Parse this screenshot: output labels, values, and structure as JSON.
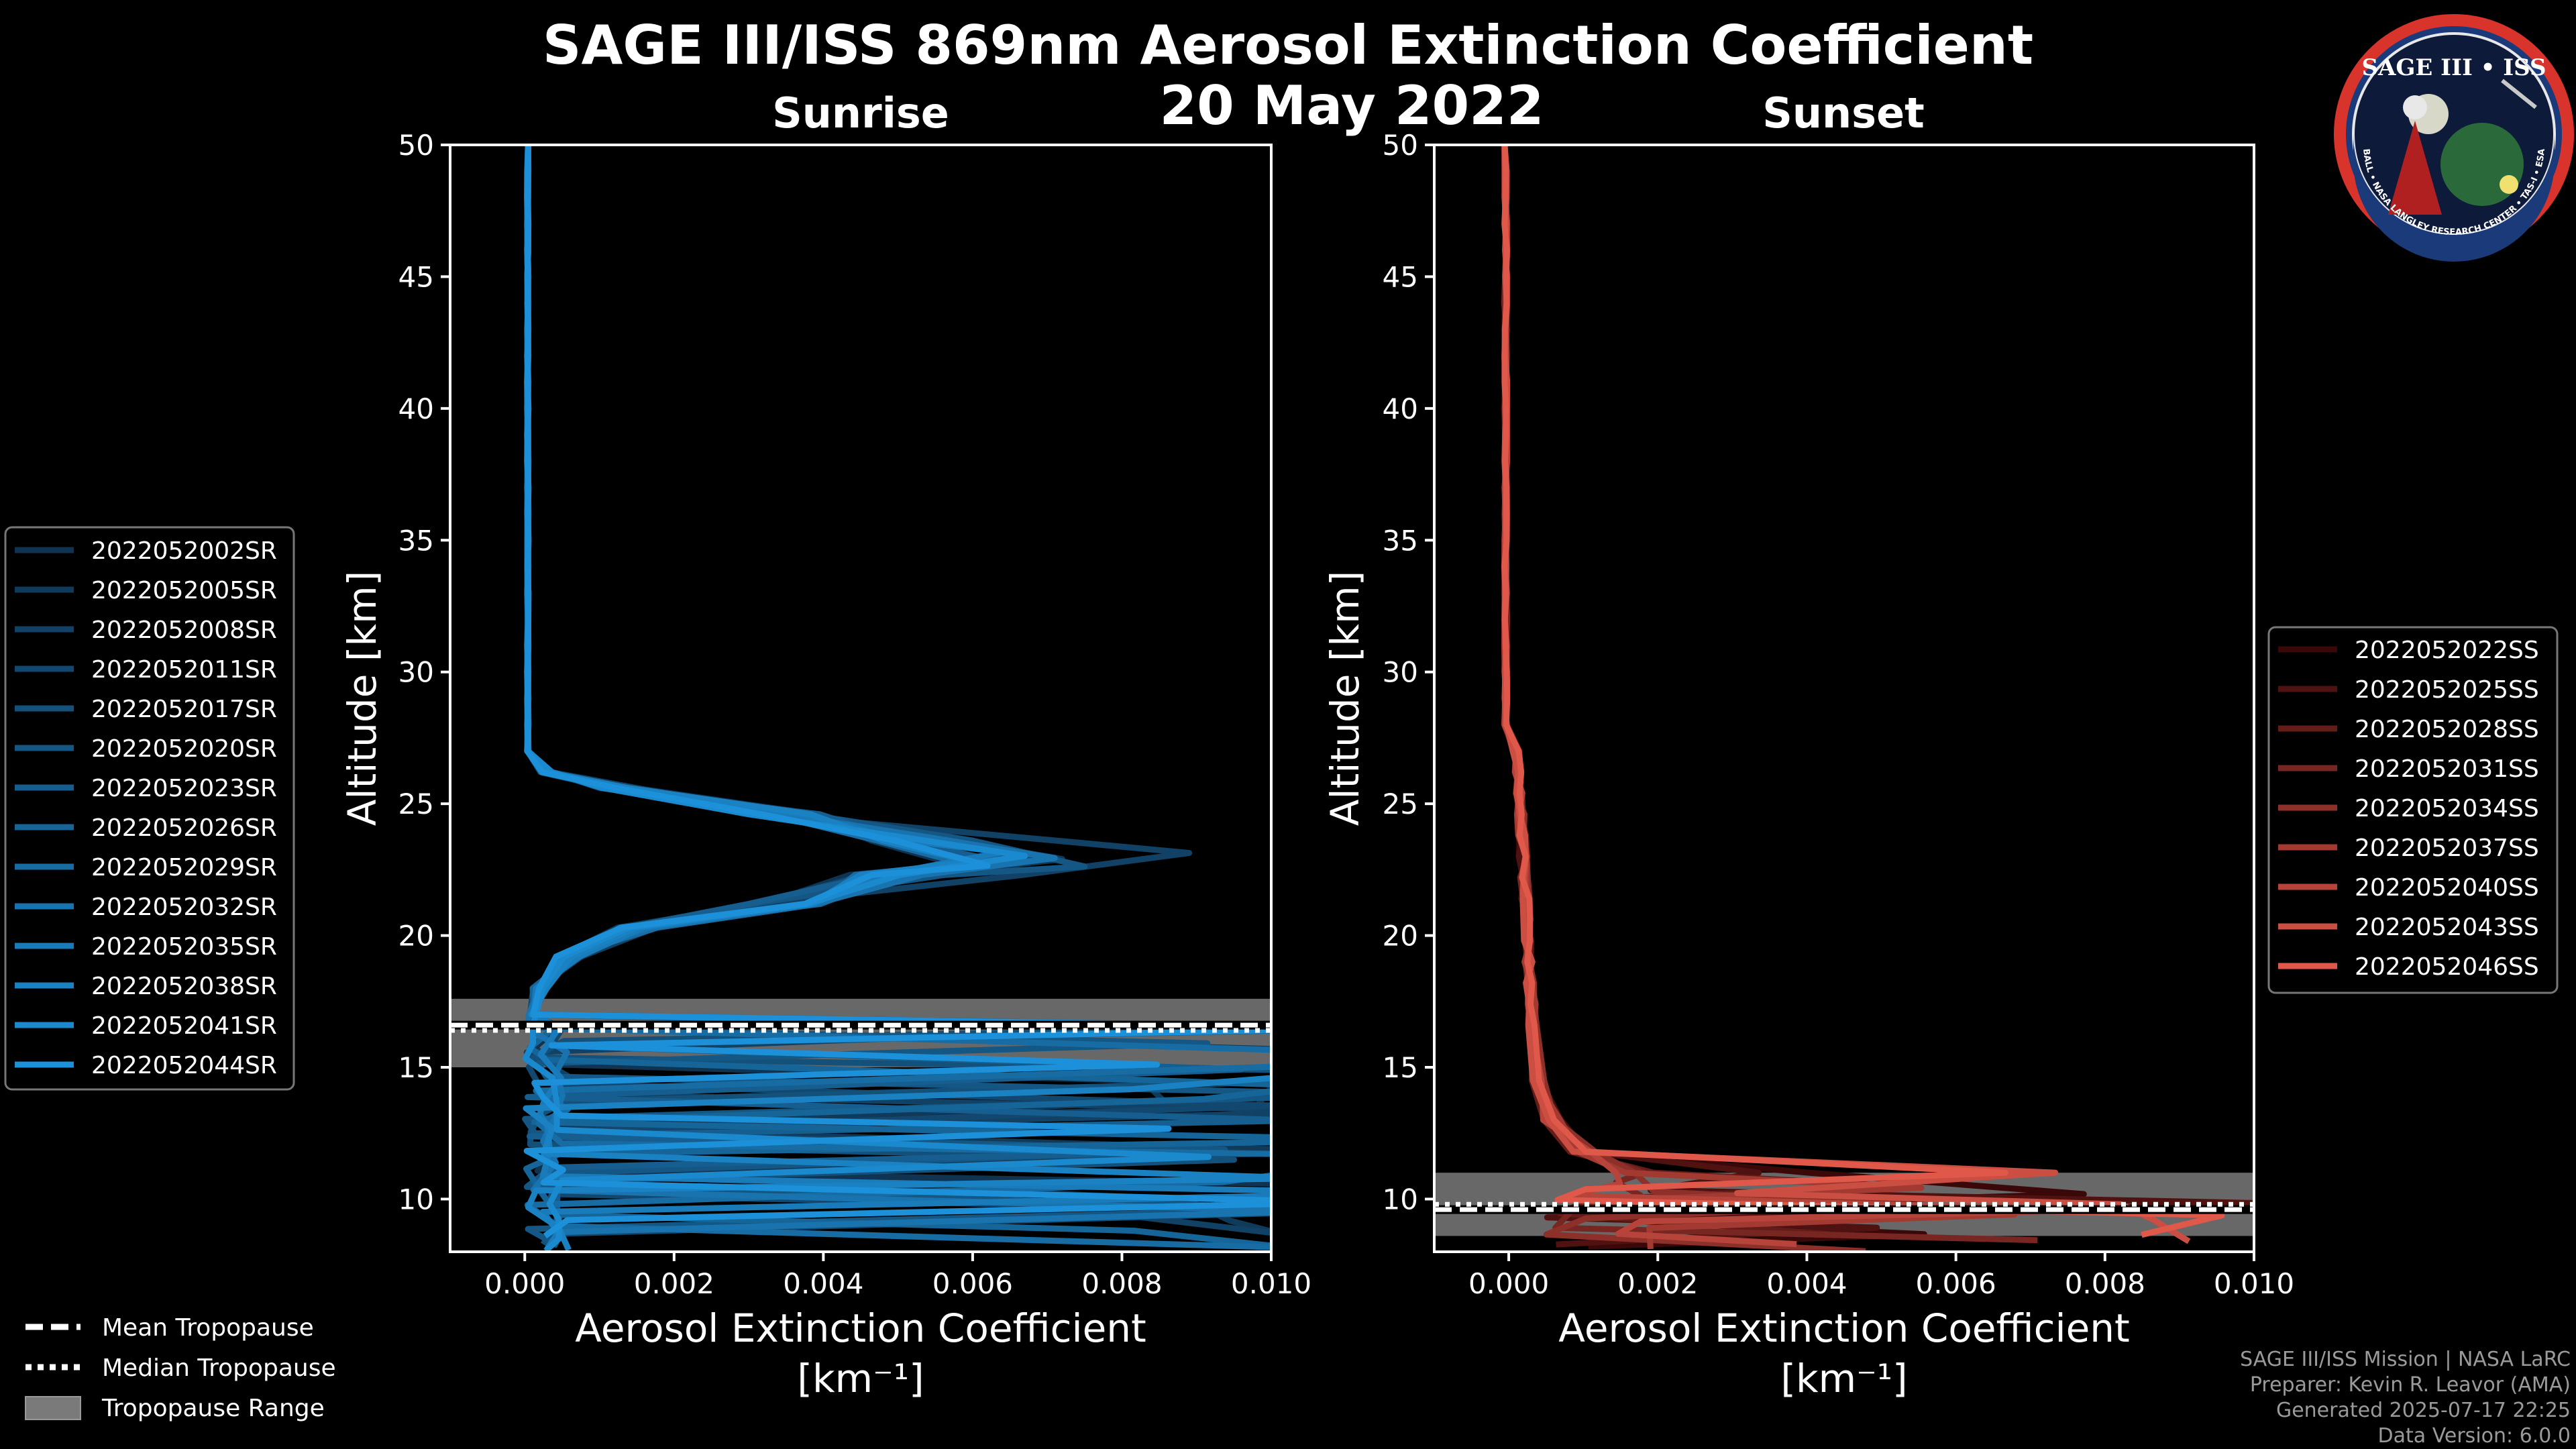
{
  "figure": {
    "title": "SAGE III/ISS 869nm Aerosol Extinction Coefficient",
    "date": "20 May 2022",
    "badge": {
      "title": "SAGE III • ISS",
      "ring_text": "BALL • NASA LANGLEY RESEARCH CENTER • TAS-I • ESA"
    },
    "credits": [
      "SAGE III/ISS Mission | NASA LaRC",
      "Preparer: Kevin R. Leavor (AMA)",
      "Generated 2025-07-17 22:25",
      "Data Version: 6.0.0"
    ],
    "tropopause_legend": [
      {
        "label": "Mean Tropopause",
        "style": "dashed"
      },
      {
        "label": "Median Tropopause",
        "style": "dotted"
      },
      {
        "label": "Tropopause Range",
        "style": "band"
      }
    ]
  },
  "chart_data": [
    {
      "type": "line",
      "title": "Sunrise",
      "xlabel": "Aerosol Extinction Coefficient",
      "xunit": "[km⁻¹]",
      "ylabel": "Altitude [km]",
      "xlim": [
        -0.001,
        0.01
      ],
      "ylim": [
        8,
        50
      ],
      "xticks": [
        0.0,
        0.002,
        0.004,
        0.006,
        0.008,
        0.01
      ],
      "xtick_labels": [
        "0.000",
        "0.002",
        "0.004",
        "0.006",
        "0.008",
        "0.010"
      ],
      "yticks": [
        10,
        15,
        20,
        25,
        30,
        35,
        40,
        45,
        50
      ],
      "tropopause": {
        "mean": 16.6,
        "median": 16.4,
        "range": [
          15.0,
          17.6
        ]
      },
      "legend_position": "left",
      "color_start": "#0f3350",
      "color_end": "#1c90d8",
      "peak_x": [
        0.0058,
        0.0072,
        0.0089,
        0.0061,
        0.0069,
        0.0075,
        0.0063,
        0.0066,
        0.0059,
        0.0071,
        0.0064,
        0.006,
        0.0067,
        0.0062
      ],
      "series": [
        {
          "name": "2022052002SR"
        },
        {
          "name": "2022052005SR"
        },
        {
          "name": "2022052008SR"
        },
        {
          "name": "2022052011SR"
        },
        {
          "name": "2022052017SR"
        },
        {
          "name": "2022052020SR"
        },
        {
          "name": "2022052023SR"
        },
        {
          "name": "2022052026SR"
        },
        {
          "name": "2022052029SR"
        },
        {
          "name": "2022052032SR"
        },
        {
          "name": "2022052035SR"
        },
        {
          "name": "2022052038SR"
        },
        {
          "name": "2022052041SR"
        },
        {
          "name": "2022052044SR"
        }
      ]
    },
    {
      "type": "line",
      "title": "Sunset",
      "xlabel": "Aerosol Extinction Coefficient",
      "xunit": "[km⁻¹]",
      "ylabel": "Altitude [km]",
      "xlim": [
        -0.001,
        0.01
      ],
      "ylim": [
        8,
        50
      ],
      "xticks": [
        0.0,
        0.002,
        0.004,
        0.006,
        0.008,
        0.01
      ],
      "xtick_labels": [
        "0.000",
        "0.002",
        "0.004",
        "0.006",
        "0.008",
        "0.010"
      ],
      "yticks": [
        10,
        15,
        20,
        25,
        30,
        35,
        40,
        45,
        50
      ],
      "tropopause": {
        "mean": 9.6,
        "median": 9.8,
        "range": [
          8.6,
          11.0
        ]
      },
      "legend_position": "right",
      "color_start": "#3a0808",
      "color_end": "#e0584a",
      "series": [
        {
          "name": "2022052022SS"
        },
        {
          "name": "2022052025SS"
        },
        {
          "name": "2022052028SS"
        },
        {
          "name": "2022052031SS"
        },
        {
          "name": "2022052034SS"
        },
        {
          "name": "2022052037SS"
        },
        {
          "name": "2022052040SS"
        },
        {
          "name": "2022052043SS"
        },
        {
          "name": "2022052046SS"
        }
      ]
    }
  ]
}
